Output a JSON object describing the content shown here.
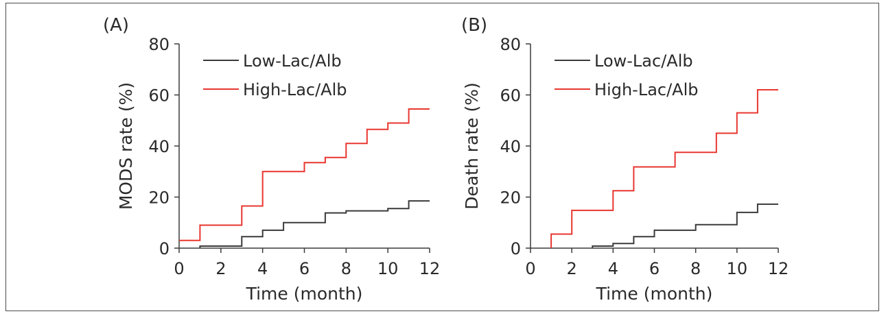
{
  "chart_data": [
    {
      "type": "line",
      "step": true,
      "panel_label": "(A)",
      "xlabel": "Time (month)",
      "ylabel": "MODS rate (%)",
      "xlim": [
        0,
        12
      ],
      "ylim": [
        0,
        80
      ],
      "x_ticks": [
        0,
        2,
        4,
        6,
        8,
        10,
        12
      ],
      "y_ticks": [
        0,
        20,
        40,
        60,
        80
      ],
      "grid": false,
      "legend_position": "top-left",
      "series": [
        {
          "name": "Low-Lac/Alb",
          "color": "#3a3a3a",
          "points": [
            [
              1,
              0
            ],
            [
              1,
              0.8
            ],
            [
              3,
              0.8
            ],
            [
              3,
              4.5
            ],
            [
              4,
              4.5
            ],
            [
              4,
              7
            ],
            [
              5,
              7
            ],
            [
              5,
              10
            ],
            [
              7,
              10
            ],
            [
              7,
              13.8
            ],
            [
              8,
              13.8
            ],
            [
              8,
              14.6
            ],
            [
              10,
              14.6
            ],
            [
              10,
              15.5
            ],
            [
              11,
              15.5
            ],
            [
              11,
              18.5
            ],
            [
              12,
              18.5
            ]
          ]
        },
        {
          "name": "High-Lac/Alb",
          "color": "#e8362f",
          "points": [
            [
              0,
              3
            ],
            [
              1,
              3
            ],
            [
              1,
              9
            ],
            [
              3,
              9
            ],
            [
              3,
              16.5
            ],
            [
              4,
              16.5
            ],
            [
              4,
              30
            ],
            [
              6,
              30
            ],
            [
              6,
              33.5
            ],
            [
              7,
              33.5
            ],
            [
              7,
              35.5
            ],
            [
              8,
              35.5
            ],
            [
              8,
              41
            ],
            [
              9,
              41
            ],
            [
              9,
              46.5
            ],
            [
              10,
              46.5
            ],
            [
              10,
              49
            ],
            [
              11,
              49
            ],
            [
              11,
              54.5
            ],
            [
              12,
              54.5
            ]
          ]
        }
      ]
    },
    {
      "type": "line",
      "step": true,
      "panel_label": "(B)",
      "xlabel": "Time (month)",
      "ylabel": "Death rate (%)",
      "xlim": [
        0,
        12
      ],
      "ylim": [
        0,
        80
      ],
      "x_ticks": [
        0,
        2,
        4,
        6,
        8,
        10,
        12
      ],
      "y_ticks": [
        0,
        20,
        40,
        60,
        80
      ],
      "grid": false,
      "legend_position": "top-left",
      "series": [
        {
          "name": "Low-Lac/Alb",
          "color": "#3a3a3a",
          "points": [
            [
              3,
              0
            ],
            [
              3,
              0.8
            ],
            [
              4,
              0.8
            ],
            [
              4,
              1.8
            ],
            [
              5,
              1.8
            ],
            [
              5,
              4.5
            ],
            [
              6,
              4.5
            ],
            [
              6,
              7
            ],
            [
              8,
              7
            ],
            [
              8,
              9.2
            ],
            [
              10,
              9.2
            ],
            [
              10,
              14
            ],
            [
              11,
              14
            ],
            [
              11,
              17.2
            ],
            [
              12,
              17.2
            ]
          ]
        },
        {
          "name": "High-Lac/Alb",
          "color": "#e8362f",
          "points": [
            [
              1,
              0
            ],
            [
              1,
              5.5
            ],
            [
              2,
              5.5
            ],
            [
              2,
              14.8
            ],
            [
              4,
              14.8
            ],
            [
              4,
              22.5
            ],
            [
              5,
              22.5
            ],
            [
              5,
              31.8
            ],
            [
              7,
              31.8
            ],
            [
              7,
              37.5
            ],
            [
              9,
              37.5
            ],
            [
              9,
              45
            ],
            [
              10,
              45
            ],
            [
              10,
              53
            ],
            [
              11,
              53
            ],
            [
              11,
              62
            ],
            [
              12,
              62
            ]
          ]
        }
      ]
    }
  ]
}
